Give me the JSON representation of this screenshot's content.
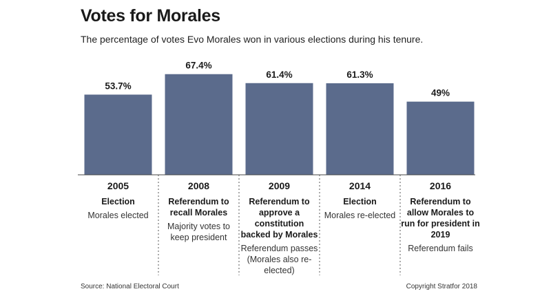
{
  "chart_data": {
    "type": "bar",
    "title": "Votes for Morales",
    "subtitle": "The percentage of votes Evo Morales won in various elections during his tenure.",
    "categories": [
      "2005",
      "2008",
      "2009",
      "2014",
      "2016"
    ],
    "values": [
      53.7,
      67.4,
      61.4,
      61.3,
      49
    ],
    "value_labels": [
      "53.7%",
      "67.4%",
      "61.4%",
      "61.3%",
      "49%"
    ],
    "descriptions": [
      "Election",
      "Referendum to recall Morales",
      "Referendum to approve a constitution backed by Morales",
      "Election",
      "Referendum to allow Morales to run for president in 2019"
    ],
    "results": [
      "Morales elected",
      "Majority votes to keep president",
      "Referendum passes (Morales also re-elected)",
      "Morales re-elected",
      "Referendum fails"
    ],
    "ylim": [
      0,
      100
    ],
    "grid": false,
    "bar_color": "#5b6b8c"
  },
  "footer": {
    "source": "Source: National Electoral Court",
    "copyright": "Copyright Stratfor 2018"
  }
}
